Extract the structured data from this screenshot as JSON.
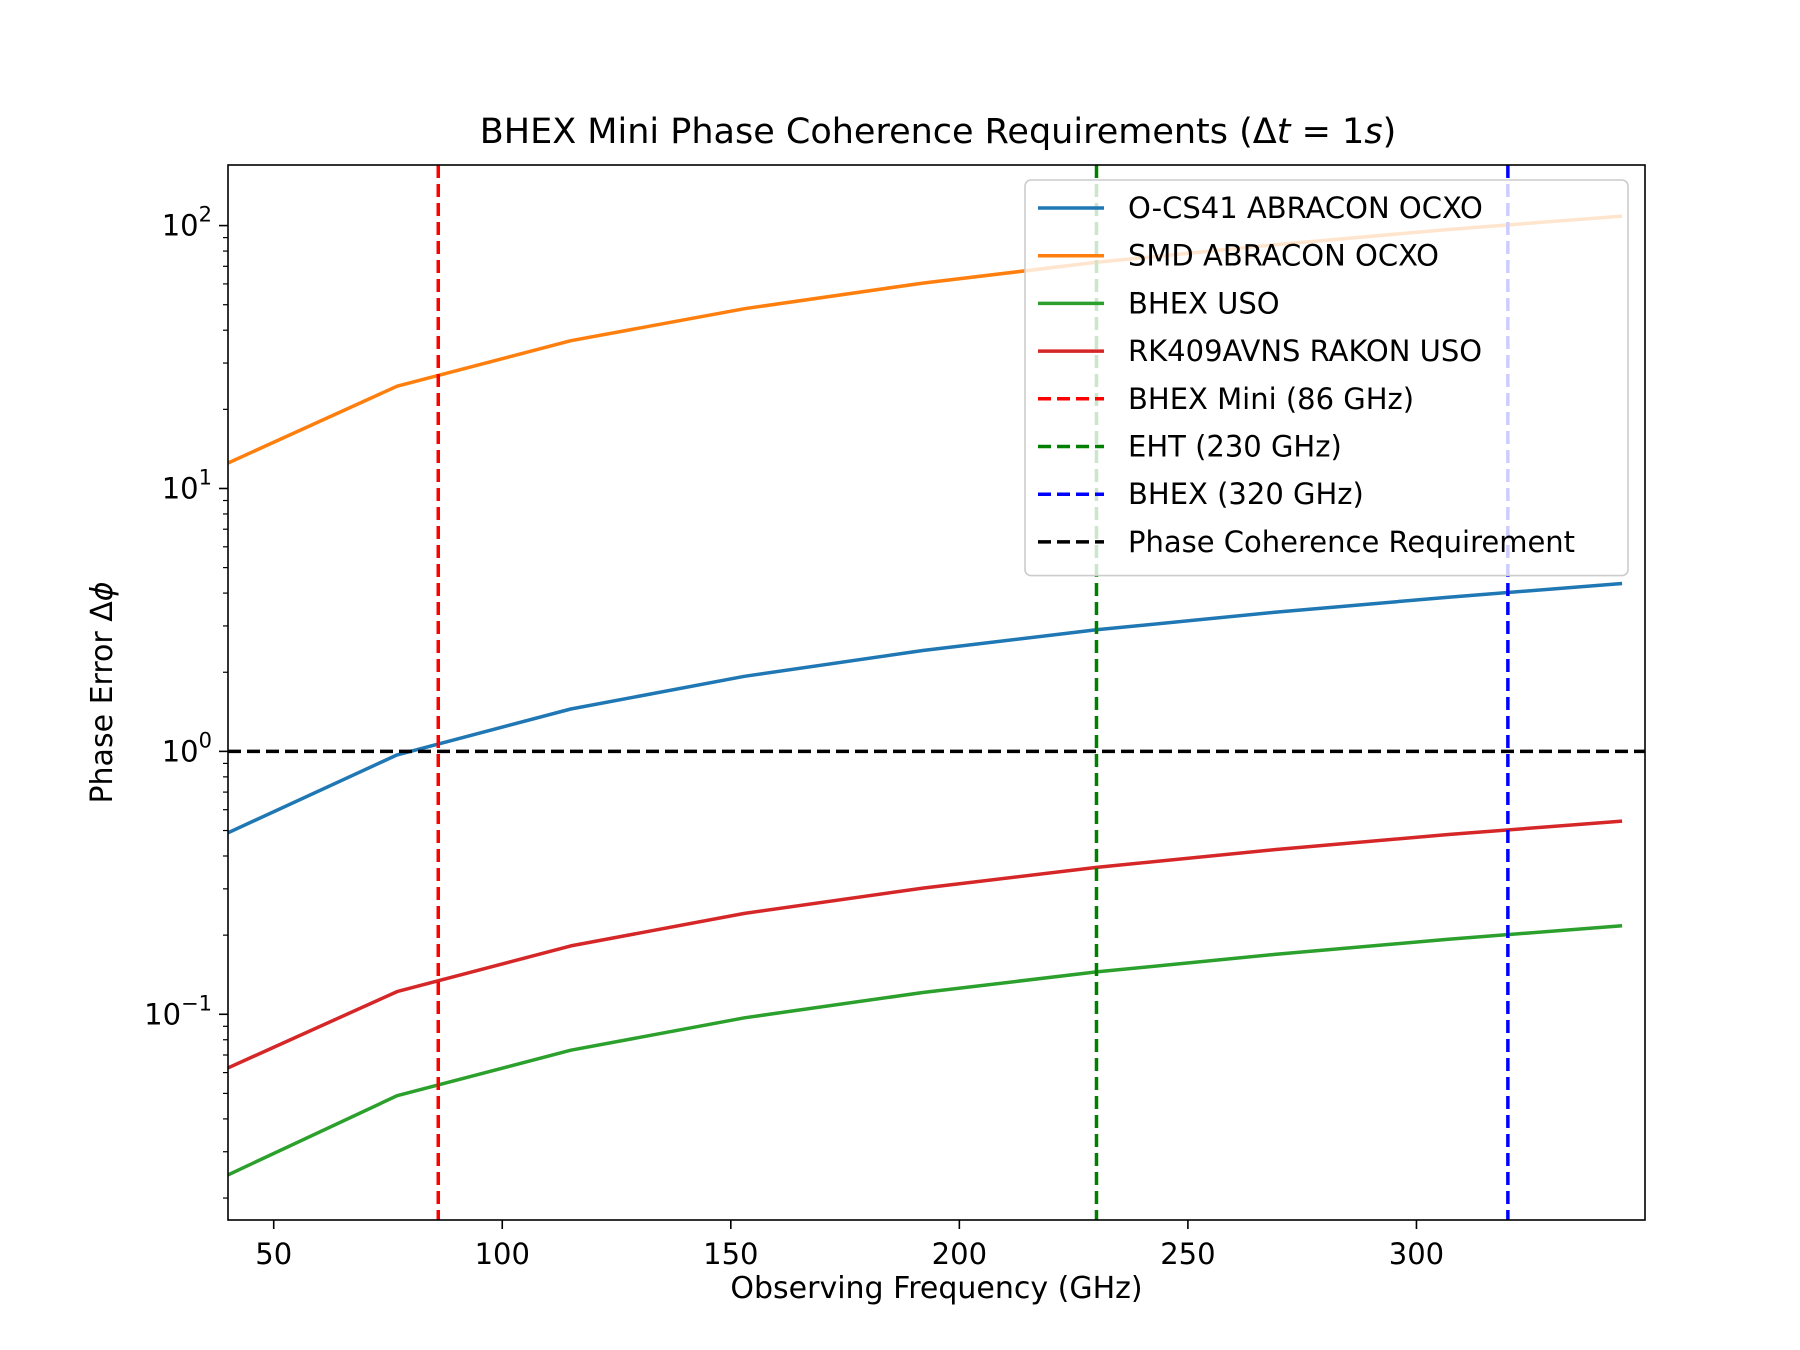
{
  "chart_data": {
    "type": "line",
    "title": "BHEX Mini Phase Coherence Requirements (Δt = 1s)",
    "title_parts": {
      "prefix": "BHEX Mini Phase Coherence Requirements (",
      "delta": "Δ",
      "t": "t",
      "eq": " = 1",
      "s": "s",
      "suffix": ")"
    },
    "xlabel": "Observing Frequency (GHz)",
    "ylabel": "Phase Error Δϕ",
    "ylabel_parts": {
      "text": "Phase Error Δ",
      "phi": "ϕ"
    },
    "xscale": "linear",
    "yscale": "log",
    "xlim": [
      40,
      350
    ],
    "ylim": [
      0.0165,
      170
    ],
    "xticks": [
      50,
      100,
      150,
      200,
      250,
      300
    ],
    "xtick_labels": [
      "50",
      "100",
      "150",
      "200",
      "250",
      "300"
    ],
    "yticks": [
      0.1,
      1,
      10,
      100
    ],
    "ytick_labels": [
      {
        "base": "10",
        "exp": "−1"
      },
      {
        "base": "10",
        "exp": "0"
      },
      {
        "base": "10",
        "exp": "1"
      },
      {
        "base": "10",
        "exp": "2"
      }
    ],
    "x": [
      40,
      77,
      115,
      153,
      192,
      230,
      269,
      307,
      345
    ],
    "series": [
      {
        "name": "O-CS41 ABRACON OCXO",
        "color": "#1f77b4",
        "style": "solid",
        "values": [
          0.49,
          0.97,
          1.45,
          1.93,
          2.42,
          2.9,
          3.38,
          3.86,
          4.35
        ]
      },
      {
        "name": "SMD ABRACON OCXO",
        "color": "#ff7f0e",
        "style": "solid",
        "values": [
          12.5,
          24.5,
          36.5,
          48.3,
          60.4,
          72.5,
          84.5,
          96.6,
          108.7
        ]
      },
      {
        "name": "BHEX USO",
        "color": "#2ca02c",
        "style": "solid",
        "values": [
          0.0245,
          0.049,
          0.073,
          0.097,
          0.121,
          0.145,
          0.169,
          0.193,
          0.217
        ]
      },
      {
        "name": "RK409AVNS RAKON USO",
        "color": "#d62728",
        "style": "solid",
        "values": [
          0.0625,
          0.122,
          0.182,
          0.242,
          0.302,
          0.362,
          0.423,
          0.483,
          0.543
        ]
      }
    ],
    "vlines": [
      {
        "name": "BHEX Mini (86 GHz)",
        "x": 86,
        "color": "#ff0000",
        "style": "dashed"
      },
      {
        "name": "EHT (230 GHz)",
        "x": 230,
        "color": "#008000",
        "style": "dashed"
      },
      {
        "name": "BHEX (320 GHz)",
        "x": 320,
        "color": "#0000ff",
        "style": "dashed"
      }
    ],
    "hlines": [
      {
        "name": "Phase Coherence Requirement",
        "y": 1,
        "color": "#000000",
        "style": "dashed"
      }
    ],
    "legend": {
      "placement": "top-right",
      "entries": [
        {
          "label": "O-CS41 ABRACON OCXO",
          "color": "#1f77b4",
          "style": "solid"
        },
        {
          "label": "SMD ABRACON OCXO",
          "color": "#ff7f0e",
          "style": "solid"
        },
        {
          "label": "BHEX USO",
          "color": "#2ca02c",
          "style": "solid"
        },
        {
          "label": "RK409AVNS RAKON USO",
          "color": "#d62728",
          "style": "solid"
        },
        {
          "label": "BHEX Mini (86 GHz)",
          "color": "#ff0000",
          "style": "dashed"
        },
        {
          "label": "EHT (230 GHz)",
          "color": "#008000",
          "style": "dashed"
        },
        {
          "label": "BHEX (320 GHz)",
          "color": "#0000ff",
          "style": "dashed"
        },
        {
          "label": "Phase Coherence Requirement",
          "color": "#000000",
          "style": "dashed"
        }
      ]
    },
    "grid": false
  }
}
